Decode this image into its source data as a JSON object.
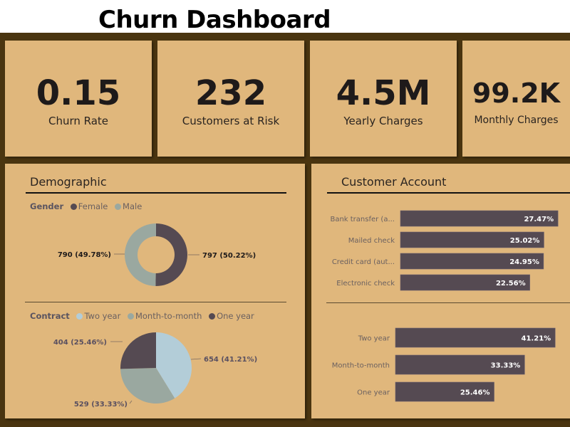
{
  "title": "Churn Dashboard",
  "kpis": [
    {
      "value": "0.15",
      "label": "Churn Rate"
    },
    {
      "value": "232",
      "label": "Customers at Risk"
    },
    {
      "value": "4.5M",
      "label": "Yearly Charges"
    },
    {
      "value": "99.2K",
      "label": "Monthly Charges"
    }
  ],
  "colors": {
    "background": "#4a3510",
    "card": "#e0b77c",
    "dark": "#554a52",
    "grey": "#9aa8a0",
    "light_blue": "#b3cdd8"
  },
  "demographic": {
    "title": "Demographic"
  },
  "account": {
    "title": "Customer Account"
  },
  "chart_data": [
    {
      "type": "pie",
      "variant": "donut",
      "legend_title": "Gender",
      "legend_position": "top-left",
      "categories": [
        "Female",
        "Male"
      ],
      "values": [
        797,
        790
      ],
      "labels": [
        "797 (50.22%)",
        "790 (49.78%)"
      ],
      "colors": [
        "#554a52",
        "#9aa8a0"
      ]
    },
    {
      "type": "pie",
      "legend_title": "Contract",
      "legend_position": "top-left",
      "categories": [
        "Two year",
        "Month-to-month",
        "One year"
      ],
      "values": [
        654,
        529,
        404
      ],
      "labels": [
        "654 (41.21%)",
        "529 (33.33%)",
        "404 (25.46%)"
      ],
      "colors": [
        "#b3cdd8",
        "#9aa8a0",
        "#554a52"
      ]
    },
    {
      "type": "bar",
      "orientation": "horizontal",
      "categories": [
        "Bank transfer (a...",
        "Mailed check",
        "Credit card (aut...",
        "Electronic check"
      ],
      "values": [
        27.47,
        25.02,
        24.95,
        22.56
      ],
      "labels": [
        "27.47%",
        "25.02%",
        "24.95%",
        "22.56%"
      ]
    },
    {
      "type": "bar",
      "orientation": "horizontal",
      "categories": [
        "Two year",
        "Month-to-month",
        "One year"
      ],
      "values": [
        41.21,
        33.33,
        25.46
      ],
      "labels": [
        "41.21%",
        "33.33%",
        "25.46%"
      ]
    }
  ]
}
